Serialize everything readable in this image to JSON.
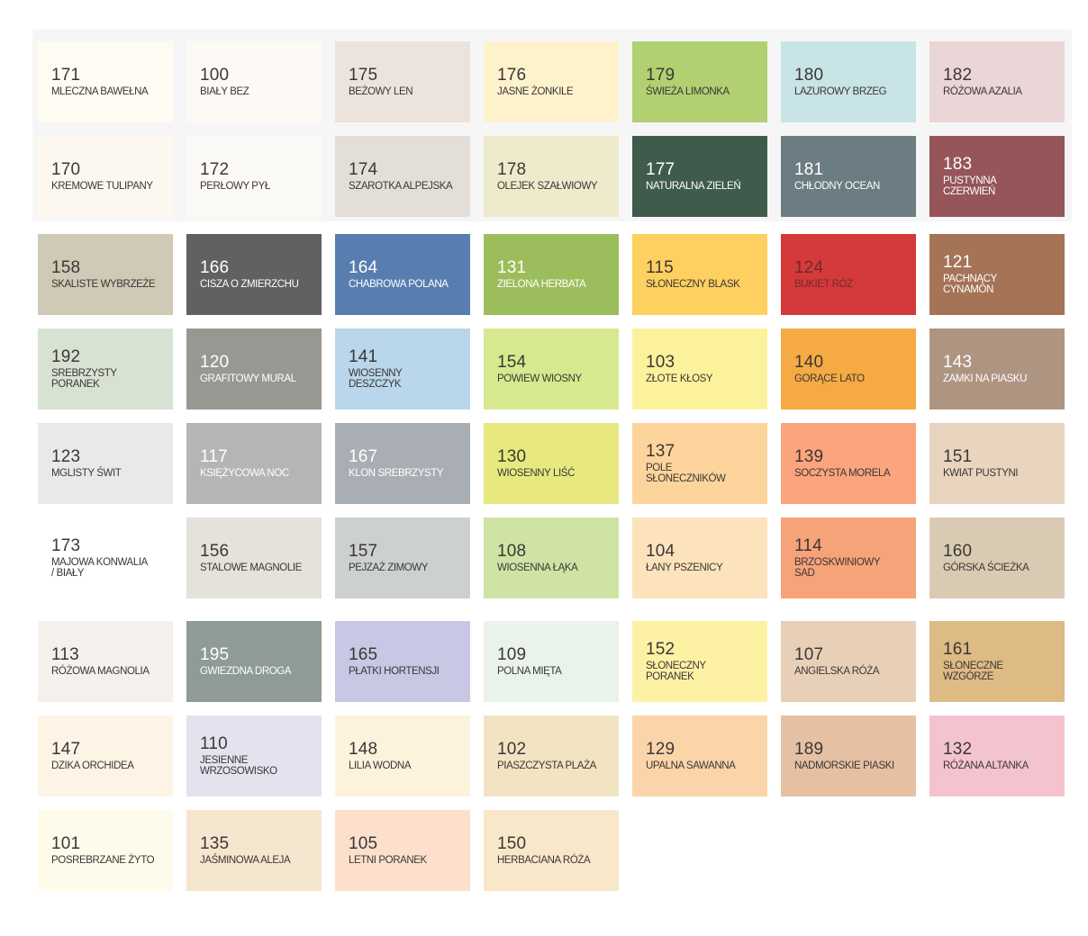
{
  "rows": [
    [
      {
        "code": "171",
        "name": "MLECZNA BAWEŁNA",
        "color": "#fefbf2"
      },
      {
        "code": "100",
        "name": "BIAŁY BEZ",
        "color": "#fdfaf5"
      },
      {
        "code": "175",
        "name": "BEŻOWY LEN",
        "color": "#ebe3dc"
      },
      {
        "code": "176",
        "name": "JASNE ŻONKILE",
        "color": "#fdf2cc"
      },
      {
        "code": "179",
        "name": "ŚWIEŻA LIMONKA",
        "color": "#b0d072"
      },
      {
        "code": "180",
        "name": "LAZUROWY BRZEG",
        "color": "#c8e4e6"
      },
      {
        "code": "182",
        "name": "RÓŻOWA AZALIA",
        "color": "#ead6d7"
      }
    ],
    [
      {
        "code": "170",
        "name": "KREMOWE TULIPANY",
        "color": "#fdf8ef"
      },
      {
        "code": "172",
        "name": "PERŁOWY PYŁ",
        "color": "#fcfaf6"
      },
      {
        "code": "174",
        "name": "SZAROTKA ALPEJSKA",
        "color": "#e3ded8"
      },
      {
        "code": "178",
        "name": "OLEJEK SZAŁWIOWY",
        "color": "#eeeacc"
      },
      {
        "code": "177",
        "name": "NATURALNA ZIELEŃ",
        "color": "#3f5b4c",
        "light": true
      },
      {
        "code": "181",
        "name": "CHŁODNY OCEAN",
        "color": "#6b7c82",
        "light": true
      },
      {
        "code": "183",
        "name": "PUSTYNNA\nCZERWIEŃ",
        "color": "#955559",
        "light": true
      }
    ],
    [
      {
        "code": "158",
        "name": "SKALISTE WYBRZEŻE",
        "color": "#cecab5"
      },
      {
        "code": "166",
        "name": "CISZA O ZMIERZCHU",
        "color": "#636063",
        "light": true
      },
      {
        "code": "164",
        "name": "CHABROWA POLANA",
        "color": "#587daf",
        "light": true
      },
      {
        "code": "131",
        "name": "ZIELONA HERBATA",
        "color": "#9cbd5c",
        "light": true
      },
      {
        "code": "115",
        "name": "SŁONECZNY BLASK",
        "color": "#fdd05f"
      },
      {
        "code": "124",
        "name": "BUKIET RÓŻ",
        "color": "#d53a3b",
        "text": "#6e2a2a"
      },
      {
        "code": "121",
        "name": "PACHNĄCY\nCYNAMON",
        "color": "#a57356",
        "light": true
      }
    ],
    [
      {
        "code": "192",
        "name": "SREBRZYSTY\nPORANEK",
        "color": "#d8e2d2"
      },
      {
        "code": "120",
        "name": "GRAFITOWY MURAL",
        "color": "#989893",
        "light": true
      },
      {
        "code": "141",
        "name": "WIOSENNY\nDESZCZYK",
        "color": "#b9d6ea"
      },
      {
        "code": "154",
        "name": "POWIEW WIOSNY",
        "color": "#d6e98e"
      },
      {
        "code": "103",
        "name": "ZŁOTE KŁOSY",
        "color": "#fdf29c"
      },
      {
        "code": "140",
        "name": "GORĄCE LATO",
        "color": "#f6aa44"
      },
      {
        "code": "143",
        "name": "ZAMKI NA PIASKU",
        "color": "#ae9582",
        "light": true
      }
    ],
    [
      {
        "code": "123",
        "name": "MGLISTY ŚWIT",
        "color": "#e8eaea"
      },
      {
        "code": "117",
        "name": "KSIĘŻYCOWA NOC",
        "color": "#b7b4b6",
        "light": true
      },
      {
        "code": "167",
        "name": "KLON SREBRZYSTY",
        "color": "#a8aeb3",
        "light": true
      },
      {
        "code": "130",
        "name": "WIOSENNY LIŚĆ",
        "color": "#e7e97e"
      },
      {
        "code": "137",
        "name": "POLE\nSŁONECZNIKÓW",
        "color": "#fdd49b"
      },
      {
        "code": "139",
        "name": "SOCZYSTA MORELA",
        "color": "#fba47d"
      },
      {
        "code": "151",
        "name": "KWIAT PUSTYNI",
        "color": "#e8d4bf"
      }
    ],
    [
      {
        "code": "173",
        "name": "MAJOWA KONWALIA\n/ BIAŁY",
        "color": "#ffffff"
      },
      {
        "code": "156",
        "name": "STALOWE MAGNOLIE",
        "color": "#e4e2da"
      },
      {
        "code": "157",
        "name": "PEJZAŻ ZIMOWY",
        "color": "#ccd1cf"
      },
      {
        "code": "108",
        "name": "WIOSENNA ŁĄKA",
        "color": "#cfe4a4"
      },
      {
        "code": "104",
        "name": "ŁANY PSZENICY",
        "color": "#fde3bb"
      },
      {
        "code": "114",
        "name": "BRZOSKWINIOWY\nSAD",
        "color": "#f7a37a"
      },
      {
        "code": "160",
        "name": "GÓRSKA ŚCIEŻKA",
        "color": "#d9cbb3"
      }
    ],
    [
      {
        "code": "113",
        "name": "RÓŻOWA MAGNOLIA",
        "color": "#f4f1ec"
      },
      {
        "code": "195",
        "name": "GWIEZDNA DROGA",
        "color": "#8e9b98",
        "light": true
      },
      {
        "code": "165",
        "name": "PŁATKI HORTENSJI",
        "color": "#c8c7e4"
      },
      {
        "code": "109",
        "name": "POLNA MIĘTA",
        "color": "#e9f2eb"
      },
      {
        "code": "152",
        "name": "SŁONECZNY\nPORANEK",
        "color": "#fdf2a4"
      },
      {
        "code": "107",
        "name": "ANGIELSKA RÓŻA",
        "color": "#e8d0b8"
      },
      {
        "code": "161",
        "name": "SŁONECZNE\nWZGÓRZE",
        "color": "#deba84"
      }
    ],
    [
      {
        "code": "147",
        "name": "DZIKA ORCHIDEA",
        "color": "#fdf4e6"
      },
      {
        "code": "110",
        "name": "JESIENNE\nWRZOSOWISKO",
        "color": "#e4e2ef"
      },
      {
        "code": "148",
        "name": "LILIA WODNA",
        "color": "#fdf2dc"
      },
      {
        "code": "102",
        "name": "PIASZCZYSTA PLAŻA",
        "color": "#f2e4c2"
      },
      {
        "code": "129",
        "name": "UPALNA SAWANNA",
        "color": "#fbd5a9"
      },
      {
        "code": "189",
        "name": "NADMORSKIE PIASKI",
        "color": "#e5c0a3"
      },
      {
        "code": "132",
        "name": "RÓŻANA ALTANKA",
        "color": "#f4c4ce"
      }
    ],
    [
      {
        "code": "101",
        "name": "POSREBRZANE ŻYTO",
        "color": "#fefbea"
      },
      {
        "code": "135",
        "name": "JAŚMINOWA ALEJA",
        "color": "#f5e6cf"
      },
      {
        "code": "105",
        "name": "LETNI PORANEK",
        "color": "#fce0cc"
      },
      {
        "code": "150",
        "name": "HERBACIANA RÓŻA",
        "color": "#f9e7c9"
      }
    ]
  ]
}
